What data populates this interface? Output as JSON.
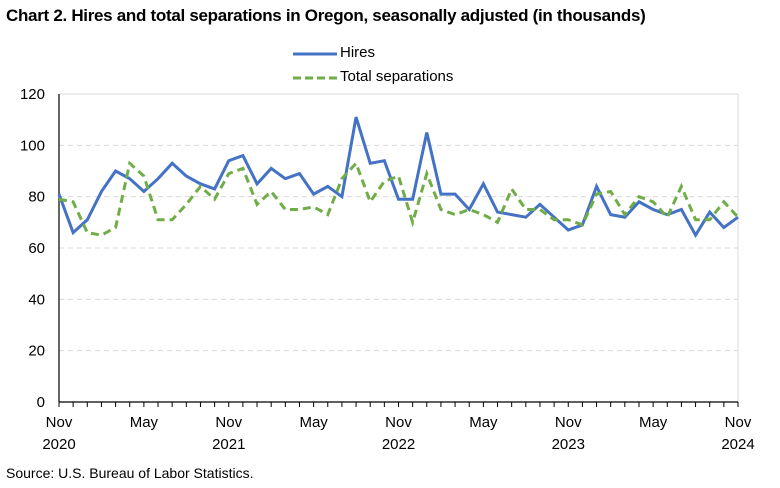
{
  "chart_data": {
    "type": "line",
    "title": "Chart 2. Hires and total separations in Oregon, seasonally adjusted (in thousands)",
    "xlabel": "",
    "ylabel": "",
    "ylim": [
      0,
      120
    ],
    "yticks": [
      "0",
      "20",
      "40",
      "60",
      "80",
      "100",
      "120"
    ],
    "x": [
      "Nov 2020",
      "Dec 2020",
      "Jan 2021",
      "Feb 2021",
      "Mar 2021",
      "Apr 2021",
      "May 2021",
      "Jun 2021",
      "Jul 2021",
      "Aug 2021",
      "Sep 2021",
      "Oct 2021",
      "Nov 2021",
      "Dec 2021",
      "Jan 2022",
      "Feb 2022",
      "Mar 2022",
      "Apr 2022",
      "May 2022",
      "Jun 2022",
      "Jul 2022",
      "Aug 2022",
      "Sep 2022",
      "Oct 2022",
      "Nov 2022",
      "Dec 2022",
      "Jan 2023",
      "Feb 2023",
      "Mar 2023",
      "Apr 2023",
      "May 2023",
      "Jun 2023",
      "Jul 2023",
      "Aug 2023",
      "Sep 2023",
      "Oct 2023",
      "Nov 2023",
      "Dec 2023",
      "Jan 2024",
      "Feb 2024",
      "Mar 2024",
      "Apr 2024",
      "May 2024",
      "Jun 2024",
      "Jul 2024",
      "Aug 2024",
      "Sep 2024",
      "Oct 2024",
      "Nov 2024"
    ],
    "xticks": [
      {
        "month": "Nov",
        "year": "2020",
        "index": 0
      },
      {
        "month": "May",
        "year": "",
        "index": 6
      },
      {
        "month": "Nov",
        "year": "2021",
        "index": 12
      },
      {
        "month": "May",
        "year": "",
        "index": 18
      },
      {
        "month": "Nov",
        "year": "2022",
        "index": 24
      },
      {
        "month": "May",
        "year": "",
        "index": 30
      },
      {
        "month": "Nov",
        "year": "2023",
        "index": 36
      },
      {
        "month": "May",
        "year": "",
        "index": 42
      },
      {
        "month": "Nov",
        "year": "2024",
        "index": 48
      }
    ],
    "series": [
      {
        "name": "Hires",
        "color": "#4472C4",
        "style": "solid",
        "values": [
          81,
          66,
          71,
          82,
          90,
          87,
          82,
          87,
          93,
          88,
          85,
          83,
          94,
          96,
          85,
          91,
          87,
          89,
          81,
          84,
          80,
          111,
          93,
          94,
          79,
          79,
          105,
          81,
          81,
          75,
          85,
          74,
          73,
          72,
          77,
          72,
          67,
          69,
          84,
          73,
          72,
          78,
          75,
          73,
          75,
          65,
          74,
          68,
          72
        ]
      },
      {
        "name": "Total separations",
        "color": "#70AD47",
        "style": "dashed",
        "values": [
          79,
          78,
          66,
          65,
          68,
          93,
          88,
          71,
          71,
          77,
          84,
          79,
          89,
          91,
          77,
          82,
          75,
          75,
          76,
          73,
          87,
          93,
          78,
          86,
          88,
          70,
          89,
          75,
          73,
          75,
          73,
          70,
          83,
          75,
          75,
          71,
          71,
          69,
          81,
          82,
          73,
          80,
          78,
          72,
          84,
          71,
          71,
          78,
          72
        ]
      }
    ],
    "grid": true,
    "legend": "top-center",
    "source": "Source: U.S. Bureau of Labor Statistics."
  }
}
